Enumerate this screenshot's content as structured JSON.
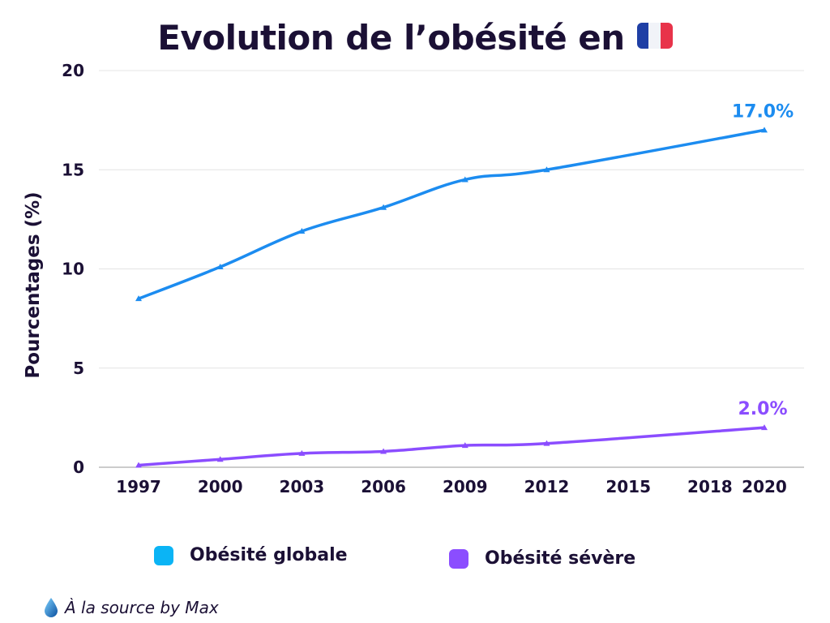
{
  "header": {
    "title": "Evolution de l’obésité en",
    "flag_colors": [
      "#1f3fa5",
      "#f1f3f8",
      "#e8334a"
    ]
  },
  "colors": {
    "global": "#1c8cf0",
    "severe": "#8b4dff",
    "legend_global": "#0bb4f5",
    "legend_severe": "#8b4dff",
    "grid": "#e4e4e4",
    "axis_text": "#1b1035"
  },
  "chart_data": {
    "type": "line",
    "title": "Evolution de l’obésité en",
    "xlabel": "",
    "ylabel": "Pourcentages (%)",
    "ylim": [
      0,
      20
    ],
    "yticks": [
      0,
      5,
      10,
      15,
      20
    ],
    "x_ticks": [
      "1997",
      "2000",
      "2003",
      "2006",
      "2009",
      "2012",
      "2015",
      "2018",
      "2020"
    ],
    "grid": true,
    "legend_position": "bottom",
    "series": [
      {
        "name": "Obésité globale",
        "x": [
          "1997",
          "2000",
          "2003",
          "2006",
          "2009",
          "2012",
          "2020"
        ],
        "values": [
          8.5,
          10.1,
          11.9,
          13.1,
          14.5,
          15.0,
          17.0
        ],
        "end_label": "17.0%"
      },
      {
        "name": "Obésité sévère",
        "x": [
          "1997",
          "2000",
          "2003",
          "2006",
          "2009",
          "2012",
          "2020"
        ],
        "values": [
          0.1,
          0.4,
          0.7,
          0.8,
          1.1,
          1.2,
          2.0
        ],
        "end_label": "2.0%"
      }
    ]
  },
  "footer": {
    "source": "À la source by Max",
    "icon": "water-drop-icon"
  }
}
